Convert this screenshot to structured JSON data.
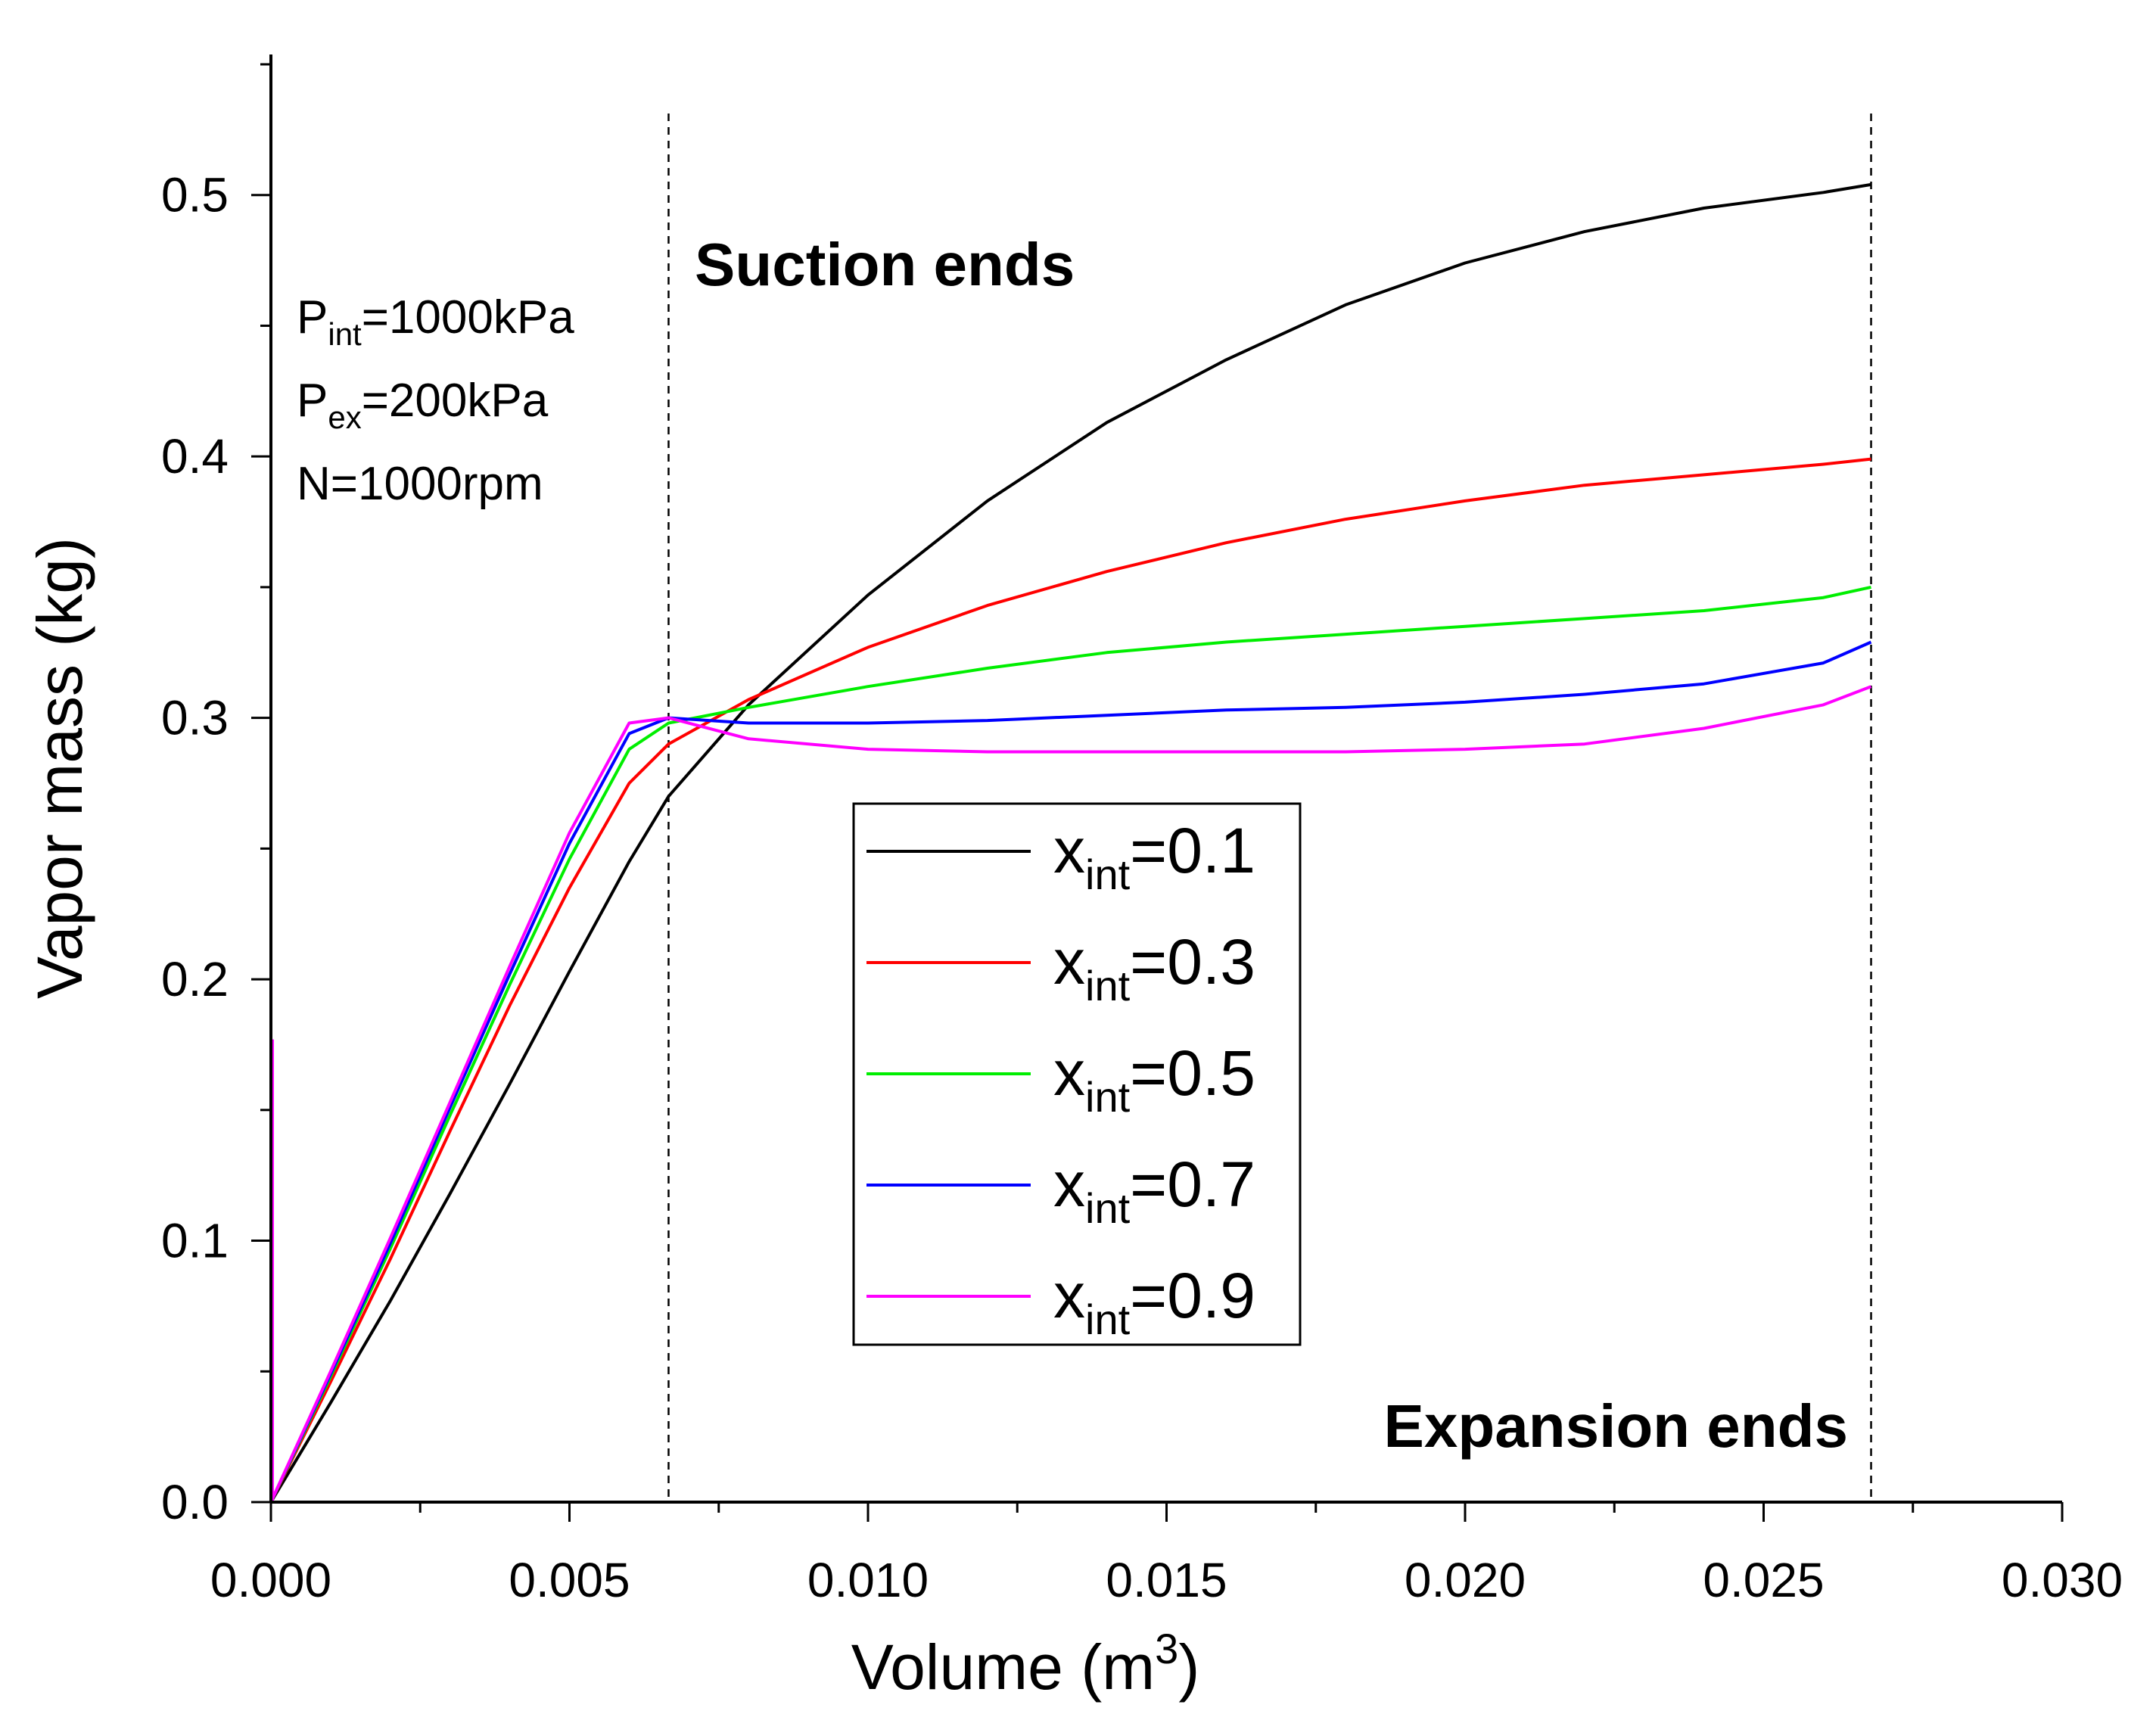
{
  "chart_data": {
    "type": "line",
    "xlabel": "Volume (m",
    "xlabel_superscript": "3",
    "xlabel_close": ")",
    "ylabel": "Vapor mass (kg)",
    "xlim": [
      0,
      0.03
    ],
    "ylim": [
      0,
      0.55
    ],
    "x_ticks": [
      0.0,
      0.005,
      0.01,
      0.015,
      0.02,
      0.025,
      0.03
    ],
    "x_tick_labels": [
      "0.000",
      "0.005",
      "0.010",
      "0.015",
      "0.020",
      "0.025",
      "0.030"
    ],
    "y_ticks": [
      0.0,
      0.1,
      0.2,
      0.3,
      0.4,
      0.5
    ],
    "y_tick_labels": [
      "0.0",
      "0.1",
      "0.2",
      "0.3",
      "0.4",
      "0.5"
    ],
    "grid": false,
    "legend_position": "center",
    "reference_lines": [
      {
        "x": 0.00666,
        "style": "dashed",
        "label": "Suction ends"
      },
      {
        "x": 0.0268,
        "style": "dashed",
        "label": "Expansion ends"
      }
    ],
    "parameters": [
      {
        "name": "P",
        "subscript": "int",
        "value": "=1000kPa"
      },
      {
        "name": "P",
        "subscript": "ex",
        "value": "=200kPa"
      },
      {
        "name": "N=1000rpm",
        "subscript": "",
        "value": ""
      }
    ],
    "series": [
      {
        "name": "x",
        "name_sub": "int",
        "name_value": "=0.1",
        "color": "#000000",
        "x": [
          0,
          0.001,
          0.002,
          0.003,
          0.004,
          0.005,
          0.006,
          0.00666,
          0.008,
          0.01,
          0.012,
          0.014,
          0.016,
          0.018,
          0.02,
          0.022,
          0.024,
          0.026,
          0.0268
        ],
        "y": [
          0,
          0.038,
          0.077,
          0.118,
          0.16,
          0.203,
          0.245,
          0.27,
          0.305,
          0.347,
          0.383,
          0.413,
          0.437,
          0.458,
          0.474,
          0.486,
          0.495,
          0.501,
          0.504
        ]
      },
      {
        "name": "x",
        "name_sub": "int",
        "name_value": "=0.3",
        "color": "#ff0000",
        "x": [
          0,
          0.001,
          0.002,
          0.003,
          0.004,
          0.005,
          0.006,
          0.00666,
          0.008,
          0.01,
          0.012,
          0.014,
          0.016,
          0.018,
          0.02,
          0.022,
          0.024,
          0.026,
          0.0268
        ],
        "y": [
          0,
          0.046,
          0.093,
          0.142,
          0.19,
          0.235,
          0.275,
          0.29,
          0.307,
          0.327,
          0.343,
          0.356,
          0.367,
          0.376,
          0.383,
          0.389,
          0.393,
          0.397,
          0.399
        ]
      },
      {
        "name": "x",
        "name_sub": "int",
        "name_value": "=0.5",
        "color": "#00ee00",
        "x": [
          0,
          0.001,
          0.002,
          0.003,
          0.004,
          0.005,
          0.006,
          0.00666,
          0.008,
          0.01,
          0.012,
          0.014,
          0.016,
          0.018,
          0.02,
          0.022,
          0.024,
          0.026,
          0.0268
        ],
        "y": [
          0,
          0.048,
          0.097,
          0.148,
          0.198,
          0.246,
          0.288,
          0.298,
          0.304,
          0.312,
          0.319,
          0.325,
          0.329,
          0.332,
          0.335,
          0.338,
          0.341,
          0.346,
          0.35
        ]
      },
      {
        "name": "x",
        "name_sub": "int",
        "name_value": "=0.7",
        "color": "#0000ff",
        "x": [
          0,
          0.001,
          0.002,
          0.003,
          0.004,
          0.005,
          0.006,
          0.00666,
          0.008,
          0.01,
          0.012,
          0.014,
          0.016,
          0.018,
          0.02,
          0.022,
          0.024,
          0.026,
          0.0268
        ],
        "y": [
          0,
          0.049,
          0.099,
          0.151,
          0.202,
          0.252,
          0.294,
          0.3,
          0.298,
          0.298,
          0.299,
          0.301,
          0.303,
          0.304,
          0.306,
          0.309,
          0.313,
          0.321,
          0.329
        ]
      },
      {
        "name": "x",
        "name_sub": "int",
        "name_value": "=0.9",
        "color": "#ff00ff",
        "x": [
          0,
          0.001,
          0.002,
          0.003,
          0.004,
          0.005,
          0.006,
          0.00666,
          0.008,
          0.01,
          0.012,
          0.014,
          0.016,
          0.018,
          0.02,
          0.022,
          0.024,
          0.026,
          0.0268
        ],
        "y": [
          0,
          0.05,
          0.101,
          0.153,
          0.205,
          0.256,
          0.298,
          0.3,
          0.292,
          0.288,
          0.287,
          0.287,
          0.287,
          0.287,
          0.288,
          0.29,
          0.296,
          0.305,
          0.312
        ]
      }
    ]
  }
}
